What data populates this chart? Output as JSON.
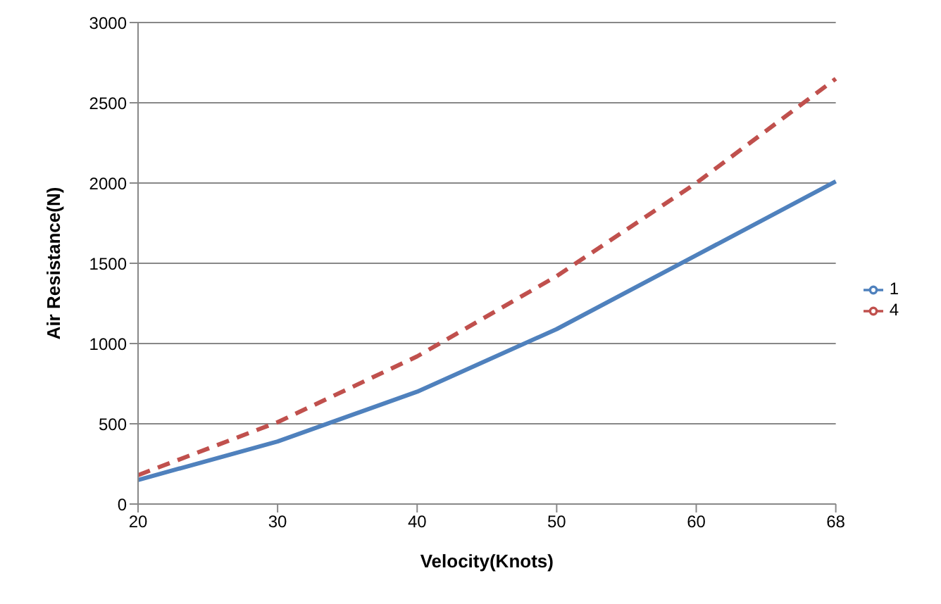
{
  "chart_data": {
    "type": "line",
    "xlabel": "Velocity(Knots)",
    "ylabel": "Air Resistance(N)",
    "categories": [
      "20",
      "30",
      "40",
      "50",
      "60",
      "68"
    ],
    "series": [
      {
        "name": "1",
        "color": "#4f81bd",
        "line_style": "solid",
        "values": [
          150,
          390,
          700,
          1090,
          1550,
          2010
        ]
      },
      {
        "name": "4",
        "color": "#c0504d",
        "line_style": "dashed",
        "values": [
          180,
          510,
          920,
          1420,
          2000,
          2650
        ]
      }
    ],
    "ylim": [
      0,
      3000
    ],
    "yticks": [
      0,
      500,
      1000,
      1500,
      2000,
      2500,
      3000
    ],
    "grid": "y",
    "legend": "right",
    "marker": "none"
  }
}
